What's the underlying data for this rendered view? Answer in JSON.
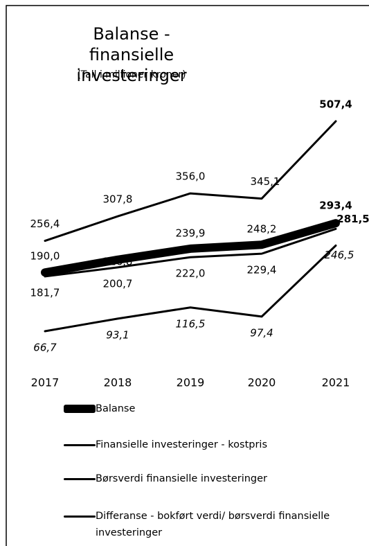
{
  "chart_data": {
    "type": "line",
    "title": "Balanse - finansielle investeringer",
    "subtitle": "(Tall i millioner kroner)",
    "categories": [
      "2017",
      "2018",
      "2019",
      "2020",
      "2021"
    ],
    "series": [
      {
        "name": "Balanse",
        "color": "#000000",
        "values": [
          190.0,
          216.8,
          239.9,
          248.2,
          293.4
        ],
        "value_labels": [
          "190,0",
          "216,8",
          "239,9",
          "248,2",
          "293,4"
        ]
      },
      {
        "name": "Finansielle investeringer - kostpris",
        "color": "#000000",
        "values": [
          181.7,
          200.7,
          222.0,
          229.4,
          281.5
        ],
        "value_labels": [
          "181,7",
          "200,7",
          "222,0",
          "229,4",
          "281,5"
        ]
      },
      {
        "name": "Børsverdi finansielle investeringer",
        "color": "#000000",
        "values": [
          256.4,
          307.8,
          356.0,
          345.1,
          507.4
        ],
        "value_labels": [
          "256,4",
          "307,8",
          "356,0",
          "345,1",
          "507,4"
        ]
      },
      {
        "name": "Differanse - bokført verdi/ børsverdi finansielle investeringer",
        "color": "#000000",
        "values": [
          66.7,
          93.1,
          116.5,
          97.4,
          246.5
        ],
        "value_labels": [
          "66,7",
          "93,1",
          "116,5",
          "97,4",
          "246,5"
        ]
      }
    ]
  }
}
